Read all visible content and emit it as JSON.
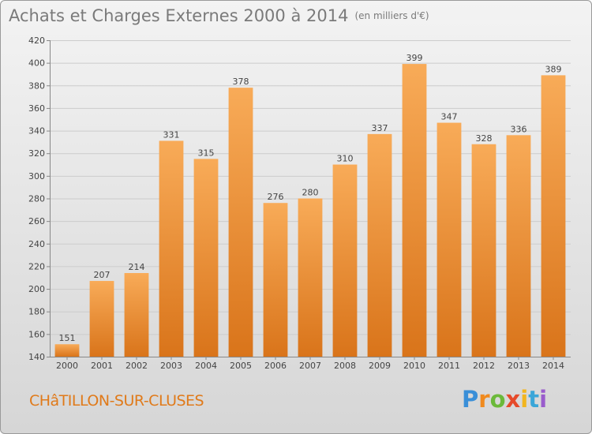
{
  "header": {
    "title": "Achats et Charges Externes 2000 à 2014",
    "subtitle": "(en milliers d'€)"
  },
  "footer": {
    "commune": "CHâTILLON-SUR-CLUSES",
    "logo": [
      "P",
      "r",
      "o",
      "x",
      "i",
      "t",
      "i"
    ]
  },
  "colors": {
    "bar_light": "#f8ab58",
    "bar_dark": "#d9741a",
    "grid": "#cccccc",
    "title": "#7a7a7a",
    "commune": "#e07a1a"
  },
  "chart_data": {
    "type": "bar",
    "title": "Achats et Charges Externes 2000 à 2014",
    "subtitle": "(en milliers d'€)",
    "xlabel": "",
    "ylabel": "",
    "ylim": [
      140,
      420
    ],
    "yticks": [
      140,
      160,
      180,
      200,
      220,
      240,
      260,
      280,
      300,
      320,
      340,
      360,
      380,
      400,
      420
    ],
    "grid": true,
    "categories": [
      "2000",
      "2001",
      "2002",
      "2003",
      "2004",
      "2005",
      "2006",
      "2007",
      "2008",
      "2009",
      "2010",
      "2011",
      "2012",
      "2013",
      "2014"
    ],
    "values": [
      151,
      207,
      214,
      331,
      315,
      378,
      276,
      280,
      310,
      337,
      399,
      347,
      328,
      336,
      389
    ]
  }
}
